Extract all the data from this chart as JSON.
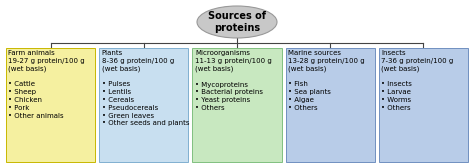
{
  "title": "Sources of\nproteins",
  "title_bg": "#c8c8c8",
  "title_edge": "#999999",
  "boxes": [
    {
      "header": "Farm animals\n19-27 g protein/100 g\n(wet basis)",
      "items": [
        "• Cattle",
        "• Sheep",
        "• Chicken",
        "• Pork",
        "• Other animals"
      ],
      "bg": "#f5f0a0",
      "edge": "#c8b800"
    },
    {
      "header": "Plants\n8-36 g protein/100 g\n(wet basis)",
      "items": [
        "• Pulses",
        "• Lentils",
        "• Cereals",
        "• Pseudocereals",
        "• Green leaves",
        "• Other seeds and plants"
      ],
      "bg": "#c8dff0",
      "edge": "#80b0d0"
    },
    {
      "header": "Microorganisms\n11-13 g protein/100 g\n(wet basis)",
      "items": [
        "• Mycoproteins",
        "• Bacterial proteins",
        "• Yeast proteins",
        "• Others"
      ],
      "bg": "#c8e8c0",
      "edge": "#80c080"
    },
    {
      "header": "Marine sources\n13-28 g protein/100 g\n(wet basis)",
      "items": [
        "• Fish",
        "• Sea plants",
        "• Algae",
        "• Others"
      ],
      "bg": "#b8cce8",
      "edge": "#7090c0"
    },
    {
      "header": "Insects\n7-36 g protein/100 g\n(wet basis)",
      "items": [
        "• Insects",
        "• Larvae",
        "• Worms",
        "• Others"
      ],
      "bg": "#b8cce8",
      "edge": "#7090c0"
    }
  ],
  "line_color": "#444444",
  "background": "#ffffff",
  "fontsize": 5.0,
  "header_fontsize": 5.2,
  "title_fontsize": 7.0
}
